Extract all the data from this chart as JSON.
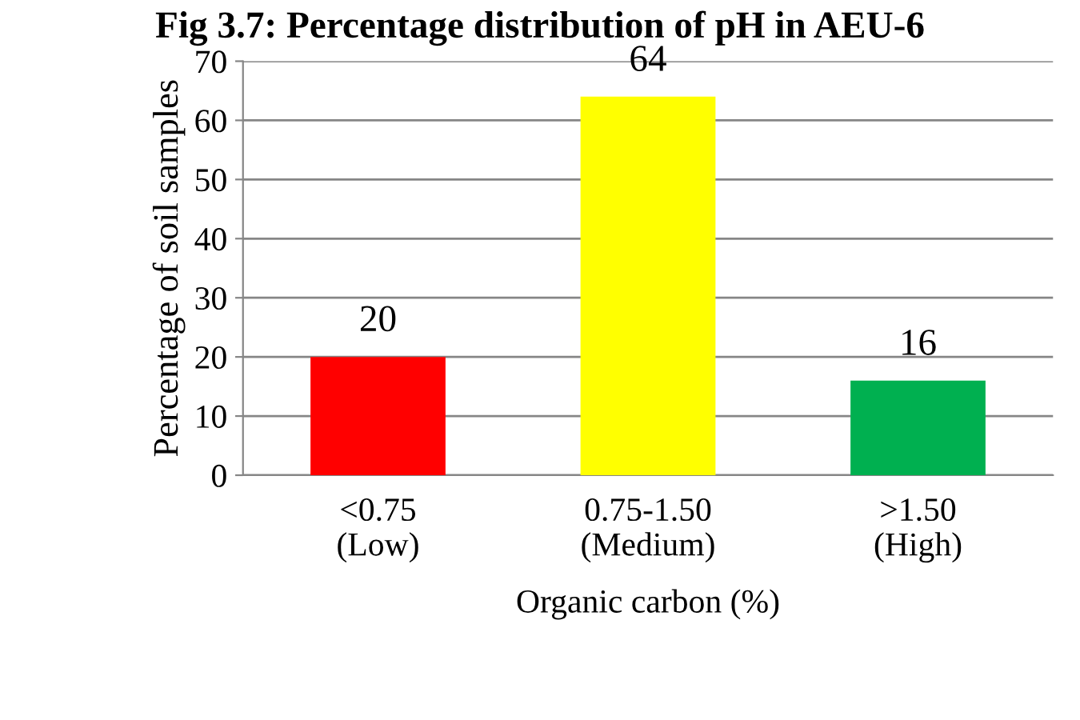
{
  "chart_data": {
    "type": "bar",
    "title": "Fig 3.7: Percentage distribution of pH in AEU-6",
    "categories": [
      "<0.75\n(Low)",
      "0.75-1.50\n(Medium)",
      ">1.50\n(High)"
    ],
    "values": [
      20,
      64,
      16
    ],
    "colors": [
      "#ff0000",
      "#ffff00",
      "#00b050"
    ],
    "xlabel": "Organic carbon (%)",
    "ylabel": "Percentage of soil samples",
    "ylim": [
      0,
      70
    ],
    "yticks": [
      0,
      10,
      20,
      30,
      40,
      50,
      60,
      70
    ],
    "grid": "y",
    "data_labels": true
  }
}
